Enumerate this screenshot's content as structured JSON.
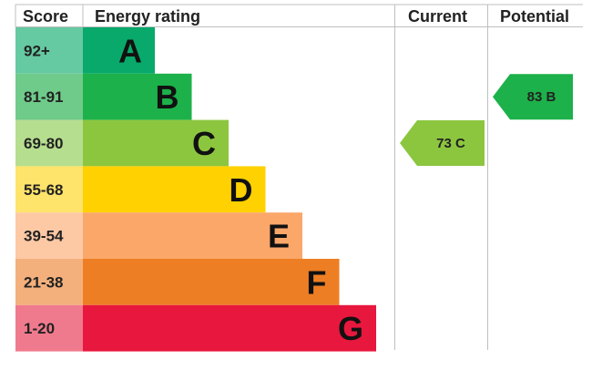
{
  "chart_data": {
    "type": "table",
    "headers": {
      "score": "Score",
      "energy_rating": "Energy rating",
      "current": "Current",
      "potential": "Potential"
    },
    "bands": [
      {
        "score": "92+",
        "letter": "A",
        "color": "#08A96B",
        "score_bg": "#65C9A2"
      },
      {
        "score": "81-91",
        "letter": "B",
        "color": "#1CB14A",
        "score_bg": "#6FCB8A"
      },
      {
        "score": "69-80",
        "letter": "C",
        "color": "#8CC63F",
        "score_bg": "#B5DE8E"
      },
      {
        "score": "55-68",
        "letter": "D",
        "color": "#FFD100",
        "score_bg": "#FFE46B"
      },
      {
        "score": "39-54",
        "letter": "E",
        "color": "#FBA76A",
        "score_bg": "#FDC9A5"
      },
      {
        "score": "21-38",
        "letter": "F",
        "color": "#EE7E23",
        "score_bg": "#F4B07C"
      },
      {
        "score": "1-20",
        "letter": "G",
        "color": "#E8173D",
        "score_bg": "#F07A8D"
      }
    ],
    "current": {
      "value": 73,
      "letter": "C",
      "label": "73  C",
      "color": "#8CC63F",
      "text_color": "#222222"
    },
    "potential": {
      "value": 83,
      "letter": "B",
      "label": "83  B",
      "color": "#1CB14A",
      "text_color": "#222222"
    }
  }
}
